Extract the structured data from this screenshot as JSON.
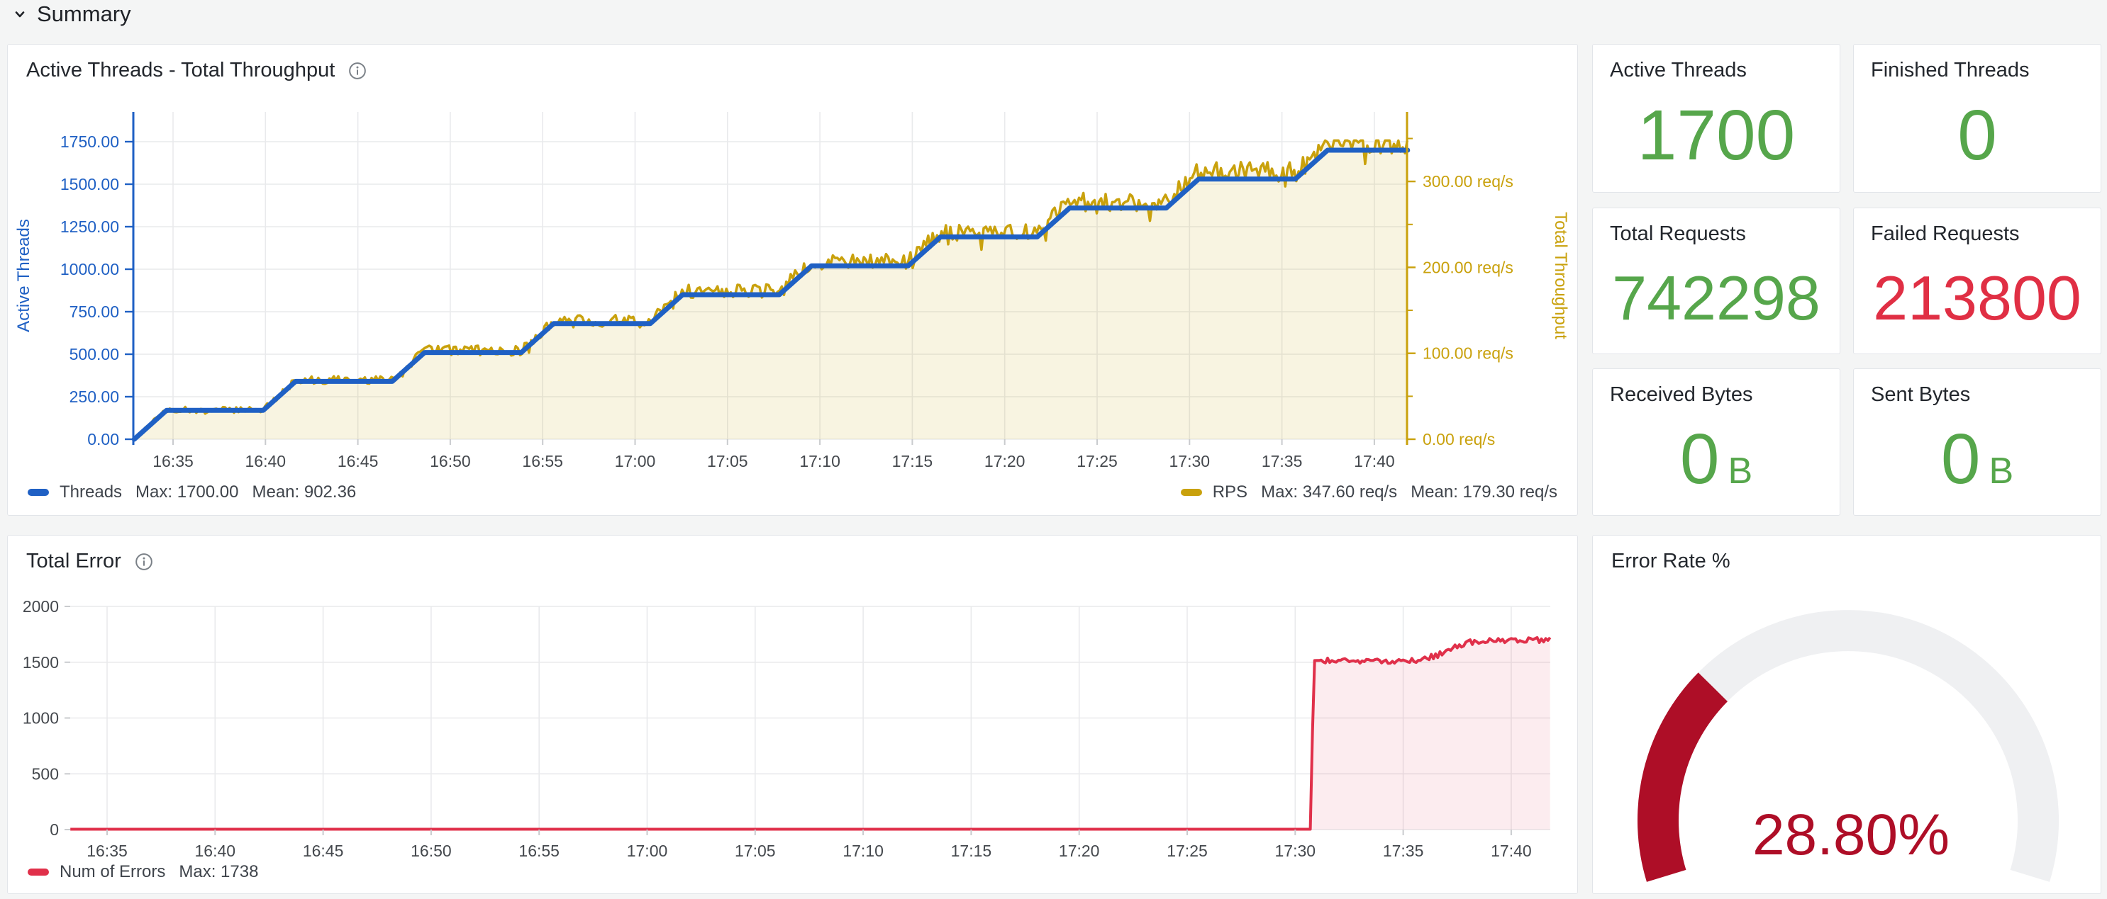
{
  "header": {
    "title": "Summary"
  },
  "colors": {
    "page_bg": "#F4F5F5",
    "panel_bg": "#FFFFFF",
    "grid": "#E9EAEC",
    "tick_text": "#44484D",
    "axis_tick_mark": "#C9CBCE",
    "green": "#56A64B",
    "red": "#E02F44",
    "dark_red": "#AE0E27",
    "blue": "#1F60C4",
    "gold": "#C9A10C"
  },
  "stats": [
    {
      "title": "Active Threads",
      "value": "1700",
      "unit": "",
      "color": "#56A64B"
    },
    {
      "title": "Finished Threads",
      "value": "0",
      "unit": "",
      "color": "#56A64B"
    },
    {
      "title": "Total Requests",
      "value": "742298",
      "unit": "",
      "color": "#56A64B"
    },
    {
      "title": "Failed Requests",
      "value": "213800",
      "unit": "",
      "color": "#E02F44"
    },
    {
      "title": "Received Bytes",
      "value": "0",
      "unit": "B",
      "color": "#56A64B"
    },
    {
      "title": "Sent Bytes",
      "value": "0",
      "unit": "B",
      "color": "#56A64B"
    }
  ],
  "chart_data": [
    {
      "type": "line",
      "title": "Active Threads - Total Throughput",
      "x_tick_labels": [
        "16:35",
        "16:40",
        "16:45",
        "16:50",
        "16:55",
        "17:00",
        "17:05",
        "17:10",
        "17:15",
        "17:20",
        "17:25",
        "17:30",
        "17:35",
        "17:40"
      ],
      "x_range_min": [
        2.9,
        71.8
      ],
      "left_axis": {
        "label": "Active Threads",
        "color": "#1F60C4",
        "tick_labels": [
          "0.00",
          "250.00",
          "500.00",
          "750.00",
          "1000.00",
          "1250.00",
          "1500.00",
          "1750.00"
        ],
        "tick_step": 250
      },
      "right_axis": {
        "label": "Total Throughput",
        "color": "#C9A10C",
        "tick_labels": [
          "0.00 req/s",
          "100.00 req/s",
          "200.00 req/s",
          "300.00 req/s"
        ],
        "tick_step": 100,
        "minor_step": 50
      },
      "series": [
        {
          "name": "Threads",
          "axis": "left",
          "color": "#1F60C4",
          "max_label": "Max: 1700.00",
          "mean_label": "Mean: 902.36",
          "breakpoints": [
            [
              2.9,
              0
            ],
            [
              4.65,
              170
            ],
            [
              9.88,
              170
            ],
            [
              11.63,
              340
            ],
            [
              16.86,
              340
            ],
            [
              18.61,
              510
            ],
            [
              23.84,
              510
            ],
            [
              25.59,
              680
            ],
            [
              30.82,
              680
            ],
            [
              32.57,
              850
            ],
            [
              37.8,
              850
            ],
            [
              39.55,
              1020
            ],
            [
              44.78,
              1020
            ],
            [
              46.53,
              1190
            ],
            [
              51.76,
              1190
            ],
            [
              53.51,
              1360
            ],
            [
              58.74,
              1360
            ],
            [
              60.49,
              1530
            ],
            [
              65.72,
              1530
            ],
            [
              67.47,
              1700
            ],
            [
              71.8,
              1700
            ]
          ]
        },
        {
          "name": "RPS",
          "axis": "right",
          "color": "#C9A10C",
          "fill": "rgba(201,161,12,0.12)",
          "max_label": "Max: 347.60 req/s",
          "mean_label": "Mean: 179.30 req/s",
          "derive_from_threads_factor": 0.2028,
          "noise_frac": 0.033,
          "noise_abs": 2.2,
          "cap": 347.6
        }
      ]
    },
    {
      "type": "line",
      "title": "Total Error",
      "x_tick_labels": [
        "16:35",
        "16:40",
        "16:45",
        "16:50",
        "16:55",
        "17:00",
        "17:05",
        "17:10",
        "17:15",
        "17:20",
        "17:25",
        "17:30",
        "17:35",
        "17:40"
      ],
      "x_range_min": [
        3.3,
        71.8
      ],
      "y_axis": {
        "tick_labels": [
          "0",
          "500",
          "1000",
          "1500",
          "2000"
        ],
        "tick_step": 500,
        "max": 2000
      },
      "series": [
        {
          "name": "Num of Errors",
          "color": "#E0304A",
          "fill": "rgba(224,48,74,0.09)",
          "max_label": "Max: 1738",
          "breakpoints": [
            [
              3.3,
              3
            ],
            [
              60.7,
              3
            ],
            [
              60.78,
              750
            ],
            [
              60.9,
              1515
            ],
            [
              62.5,
              1520
            ],
            [
              64.0,
              1502
            ],
            [
              65.5,
              1515
            ],
            [
              66.5,
              1555
            ],
            [
              67.3,
              1625
            ],
            [
              68.1,
              1680
            ],
            [
              69.0,
              1695
            ],
            [
              71.8,
              1700
            ]
          ],
          "noise_after_min": 61.2,
          "noise_amp": 24
        }
      ]
    },
    {
      "type": "gauge",
      "title": "Error Rate %",
      "value": 28.8,
      "min": 0,
      "max": 100,
      "display": "28.80%",
      "bar_color": "#AE0E27",
      "track_color": "#EFF0F2",
      "text_color": "#AE0E27"
    }
  ]
}
